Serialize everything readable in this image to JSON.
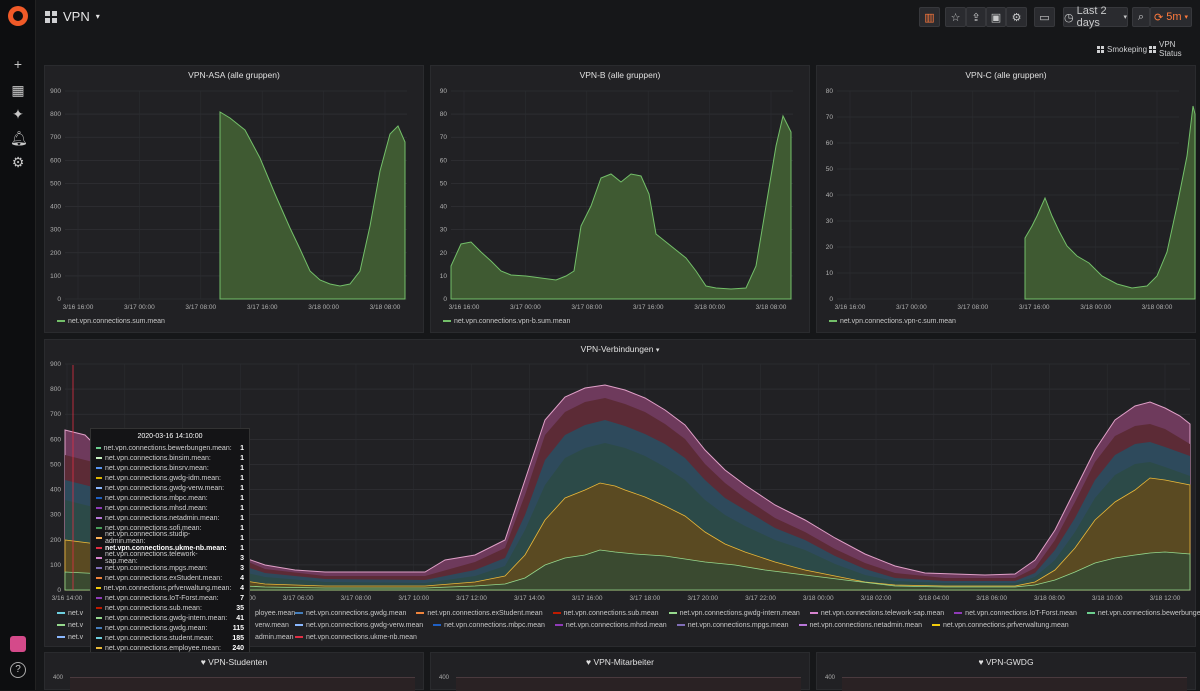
{
  "dashboard": {
    "title": "VPN"
  },
  "toolbar": {
    "time_range": "Last 2 days",
    "refresh": "5m"
  },
  "subnav": {
    "smokeping": "Smokeping",
    "vpn_status": "VPN Status"
  },
  "colors": {
    "green_fill": "#3f5a32",
    "green_line": "#73bf69",
    "accent": "#f05a28",
    "refresh": "#ff7a3d"
  },
  "panels": {
    "asa": {
      "title": "VPN-ASA (alle gruppen)",
      "legend": "net.vpn.connections.sum.mean",
      "y_ticks": [
        "900",
        "800",
        "700",
        "600",
        "500",
        "400",
        "300",
        "200",
        "100",
        "0"
      ],
      "x_ticks": [
        "3/16 16:00",
        "3/17 00:00",
        "3/17 08:00",
        "3/17 16:00",
        "3/18 00:00",
        "3/18 08:00"
      ]
    },
    "vpnb": {
      "title": "VPN-B (alle gruppen)",
      "legend": "net.vpn.connections.vpn-b.sum.mean",
      "y_ticks": [
        "90",
        "80",
        "70",
        "60",
        "50",
        "40",
        "30",
        "20",
        "10",
        "0"
      ],
      "x_ticks": [
        "3/16 16:00",
        "3/17 00:00",
        "3/17 08:00",
        "3/17 16:00",
        "3/18 00:00",
        "3/18 08:00"
      ]
    },
    "vpnc": {
      "title": "VPN-C (alle gruppen)",
      "legend": "net.vpn.connections.vpn-c.sum.mean",
      "y_ticks": [
        "80",
        "70",
        "60",
        "50",
        "40",
        "30",
        "20",
        "10",
        "0"
      ],
      "x_ticks": [
        "3/16 16:00",
        "3/17 00:00",
        "3/17 08:00",
        "3/17 16:00",
        "3/18 00:00",
        "3/18 08:00"
      ]
    },
    "verbindungen": {
      "title": "VPN-Verbindungen",
      "y_ticks": [
        "900",
        "800",
        "700",
        "600",
        "500",
        "400",
        "300",
        "200",
        "100",
        "0"
      ],
      "x_ticks": [
        "3/16 14:00",
        "3/16 22:00",
        "3/17 02:00",
        "3/17 04:00",
        "3/17 06:00",
        "3/17 08:00",
        "3/17 10:00",
        "3/17 12:00",
        "3/17 14:00",
        "3/17 16:00",
        "3/17 18:00",
        "3/17 20:00",
        "3/17 22:00",
        "3/18 00:00",
        "3/18 02:00",
        "3/18 04:00",
        "3/18 06:00",
        "3/18 08:00",
        "3/18 10:00",
        "3/18 12:00"
      ],
      "legend_row1": [
        "net.vpn.connections.gwdg.mean",
        "net.vpn.connections.exStudent.mean",
        "net.vpn.connections.sub.mean",
        "net.vpn.connections.gwdg-intern.mean",
        "net.vpn.connections.telework-sap.mean",
        "net.vpn.connections.IoT-Forst.mean",
        "net.vpn.connections.bewerbungen.mean"
      ],
      "legend_row2": [
        "net.vpn.connections.gwdg-verw.mean",
        "net.vpn.connections.mbpc.mean",
        "net.vpn.connections.mhsd.mean",
        "net.vpn.connections.mpgs.mean",
        "net.vpn.connections.netadmin.mean",
        "net.vpn.connections.prfverwaltung.mean"
      ],
      "legend_row3": [
        "net.vpn.connections.ukme-nb.mean"
      ],
      "legend_frag1": "net.v",
      "legend_frag2": "net.v",
      "legend_frag3": "net.v",
      "legend_frag_employee": "ployee.mean",
      "legend_frag_verw": "verw.mean",
      "legend_frag_admin": "admin.mean"
    },
    "studenten": {
      "title": "VPN-Studenten",
      "y_top": "400"
    },
    "mitarbeiter": {
      "title": "VPN-Mitarbeiter",
      "y_top": "400"
    },
    "gwdg": {
      "title": "VPN-GWDG",
      "y_top": "400"
    }
  },
  "tooltip": {
    "time": "2020-03-16 14:10:00",
    "rows": [
      {
        "name": "net.vpn.connections.bewerbungen.mean:",
        "value": "1",
        "color": "#6ccf8e"
      },
      {
        "name": "net.vpn.connections.binsim.mean:",
        "value": "1",
        "color": "#c8f2c2"
      },
      {
        "name": "net.vpn.connections.binsrv.mean:",
        "value": "1",
        "color": "#5794f2"
      },
      {
        "name": "net.vpn.connections.gwdg-idm.mean:",
        "value": "1",
        "color": "#e0b400"
      },
      {
        "name": "net.vpn.connections.gwdg-verw.mean:",
        "value": "1",
        "color": "#8ab8ff"
      },
      {
        "name": "net.vpn.connections.mbpc.mean:",
        "value": "1",
        "color": "#1f60c4"
      },
      {
        "name": "net.vpn.connections.mhsd.mean:",
        "value": "1",
        "color": "#8f3bb8"
      },
      {
        "name": "net.vpn.connections.netadmin.mean:",
        "value": "1",
        "color": "#b877d9"
      },
      {
        "name": "net.vpn.connections.sofi.mean:",
        "value": "1",
        "color": "#4a9f5a"
      },
      {
        "name": "net.vpn.connections.studip-admin.mean:",
        "value": "1",
        "color": "#ffb357"
      },
      {
        "name": "net.vpn.connections.ukme-nb.mean:",
        "value": "1",
        "color": "#e02f44"
      },
      {
        "name": "net.vpn.connections.telework-sap.mean:",
        "value": "3",
        "color": "#d683ce"
      },
      {
        "name": "net.vpn.connections.mpgs.mean:",
        "value": "3",
        "color": "#806eb7"
      },
      {
        "name": "net.vpn.connections.exStudent.mean:",
        "value": "4",
        "color": "#ef843c"
      },
      {
        "name": "net.vpn.connections.prfverwaltung.mean:",
        "value": "4",
        "color": "#f2cc0c"
      },
      {
        "name": "net.vpn.connections.IoT-Forst.mean:",
        "value": "7",
        "color": "#8f3bb8"
      },
      {
        "name": "net.vpn.connections.sub.mean:",
        "value": "35",
        "color": "#bf1b00"
      },
      {
        "name": "net.vpn.connections.gwdg-intern.mean:",
        "value": "41",
        "color": "#96d98d"
      },
      {
        "name": "net.vpn.connections.gwdg.mean:",
        "value": "115",
        "color": "#447ebc"
      },
      {
        "name": "net.vpn.connections.student.mean:",
        "value": "185",
        "color": "#6ed0e0"
      },
      {
        "name": "net.vpn.connections.employee.mean:",
        "value": "240",
        "color": "#eab839"
      }
    ]
  }
}
